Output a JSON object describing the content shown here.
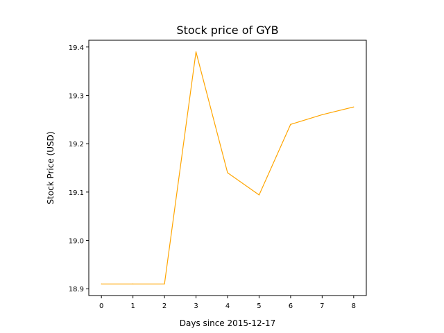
{
  "chart_data": {
    "type": "line",
    "title": "Stock price of GYB",
    "xlabel": "Days since 2015-12-17",
    "ylabel": "Stock Price (USD)",
    "x": [
      0,
      1,
      2,
      3,
      4,
      5,
      6,
      7,
      8
    ],
    "series": [
      {
        "values": [
          18.91,
          18.91,
          18.91,
          19.39,
          19.14,
          19.094,
          19.24,
          19.26,
          19.276
        ],
        "color": "#FFA500"
      }
    ],
    "xticks": [
      0,
      1,
      2,
      3,
      4,
      5,
      6,
      7,
      8
    ],
    "xtick_labels": [
      "0",
      "1",
      "2",
      "3",
      "4",
      "5",
      "6",
      "7",
      "8"
    ],
    "yticks": [
      18.9,
      19.0,
      19.1,
      19.2,
      19.3,
      19.4
    ],
    "ytick_labels": [
      "18.9",
      "19.0",
      "19.1",
      "19.2",
      "19.3",
      "19.4"
    ],
    "xlim": [
      -0.4,
      8.4
    ],
    "ylim": [
      18.886,
      19.414
    ],
    "grid": false
  }
}
